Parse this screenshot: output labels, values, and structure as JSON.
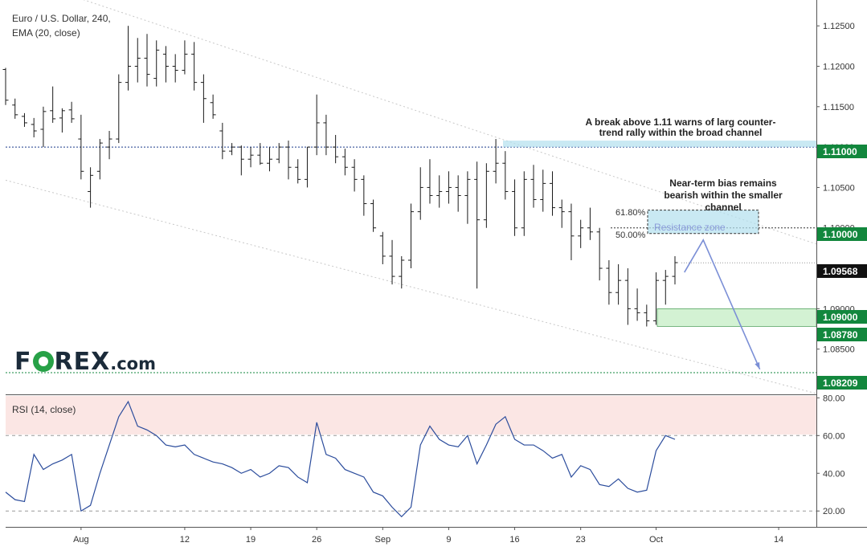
{
  "header": {
    "symbol_line": "Euro / U.S. Dollar, 240,",
    "ema_line": "EMA (20, close)",
    "rsi_label": "RSI (14, close)"
  },
  "logo": {
    "part1": "F",
    "part2": "REX",
    "suffix": ".com"
  },
  "annotations": {
    "break_note_1": "A break above 1.11 warns of larg counter-",
    "break_note_2": "trend rally within the broad channel",
    "bias_note_1": "Near-term bias remains",
    "bias_note_2": "bearish within the smaller",
    "bias_note_3": "channel",
    "fib_618": "61.80%",
    "fib_50": "50.00%",
    "resistance_zone": "Resistance zone"
  },
  "colors": {
    "candle": "#1a1a1a",
    "rsi_line": "#2b4c9c",
    "resistance_fill": "#b2e0ee",
    "support_fill": "#c8efc8",
    "projection_arrow": "#7b8fd6",
    "price_badge_green": "#12873d",
    "last_price_badge": "#111111"
  },
  "chart_data": [
    {
      "type": "candlestick",
      "title": "Euro / U.S. Dollar, 240,",
      "indicator": "EMA (20, close)",
      "y_axis": {
        "ticks": [
          "1.12500",
          "1.12000",
          "1.11500",
          "1.11000",
          "1.10500",
          "1.10000",
          "1.09500",
          "1.09000",
          "1.08500"
        ],
        "range": [
          1.0795,
          1.128
        ]
      },
      "x_axis": {
        "tick_labels": [
          "Aug",
          "12",
          "19",
          "26",
          "Sep",
          "9",
          "16",
          "23",
          "Oct",
          "14"
        ],
        "range": [
          "2019-07-24",
          "2019-10-18"
        ]
      },
      "price_labels": {
        "level_1110": "1.11000",
        "level_1100": "1.10000",
        "last_price": "1.09568",
        "level_1090": "1.09000",
        "level_10878": "1.08780",
        "level_10821": "1.08209"
      },
      "last_price": 1.09568,
      "horizontal_levels": [
        1.11,
        1.1,
        1.08209
      ],
      "zones": {
        "resistance": {
          "label": "Resistance zone",
          "from": 1.0993,
          "to": 1.1022
        },
        "upper_band": {
          "from": 1.11,
          "to": 1.1108
        },
        "support": {
          "from": 1.0878,
          "to": 1.09
        }
      },
      "fibonacci": [
        {
          "label": "61.80%",
          "value": 1.102
        },
        {
          "label": "50.00%",
          "value": 1.1
        }
      ],
      "channel_lines": [
        {
          "from": [
            "2019-07-29",
            1.1295
          ],
          "to": [
            "2019-10-18",
            1.098
          ]
        },
        {
          "from": [
            "2019-07-24",
            1.1059
          ],
          "to": [
            "2019-10-18",
            1.0795
          ]
        }
      ],
      "projection": [
        {
          "date": "2019-10-04",
          "price": 1.0945
        },
        {
          "date": "2019-10-06",
          "price": 1.0985
        },
        {
          "date": "2019-10-12",
          "price": 1.0825
        }
      ],
      "candles": [
        [
          "2019-07-24",
          1.1196,
          1.1198,
          1.1152,
          1.1158
        ],
        [
          "2019-07-25",
          1.1152,
          1.116,
          1.1135,
          1.114
        ],
        [
          "2019-07-26",
          1.1138,
          1.1142,
          1.1125,
          1.113
        ],
        [
          "2019-07-27",
          1.1128,
          1.1136,
          1.1112,
          1.112
        ],
        [
          "2019-07-28",
          1.1122,
          1.115,
          1.11,
          1.1144
        ],
        [
          "2019-07-29",
          1.1145,
          1.1175,
          1.113,
          1.1135
        ],
        [
          "2019-07-30",
          1.1136,
          1.1148,
          1.1118,
          1.1145
        ],
        [
          "2019-07-31",
          1.1146,
          1.1156,
          1.113,
          1.1135
        ],
        [
          "2019-08-01",
          1.111,
          1.114,
          1.106,
          1.107
        ],
        [
          "2019-08-02",
          1.1045,
          1.1075,
          1.1025,
          1.1065
        ],
        [
          "2019-08-03",
          1.107,
          1.111,
          1.106,
          1.1105
        ],
        [
          "2019-08-04",
          1.11,
          1.112,
          1.1085,
          1.111
        ],
        [
          "2019-08-05",
          1.111,
          1.119,
          1.1105,
          1.118
        ],
        [
          "2019-08-06",
          1.118,
          1.125,
          1.117,
          1.12
        ],
        [
          "2019-08-07",
          1.12,
          1.1235,
          1.118,
          1.121
        ],
        [
          "2019-08-08",
          1.121,
          1.124,
          1.1175,
          1.119
        ],
        [
          "2019-08-09",
          1.1185,
          1.1232,
          1.1175,
          1.122
        ],
        [
          "2019-08-10",
          1.1215,
          1.1225,
          1.118,
          1.12
        ],
        [
          "2019-08-11",
          1.12,
          1.1215,
          1.118,
          1.1195
        ],
        [
          "2019-08-12",
          1.1195,
          1.1232,
          1.119,
          1.1215
        ],
        [
          "2019-08-13",
          1.1215,
          1.123,
          1.117,
          1.118
        ],
        [
          "2019-08-14",
          1.118,
          1.119,
          1.113,
          1.116
        ],
        [
          "2019-08-15",
          1.1155,
          1.1165,
          1.1135,
          1.114
        ],
        [
          "2019-08-16",
          1.112,
          1.113,
          1.1085,
          1.1095
        ],
        [
          "2019-08-17",
          1.1095,
          1.1105,
          1.109,
          1.11
        ],
        [
          "2019-08-18",
          1.11,
          1.1102,
          1.1065,
          1.1085
        ],
        [
          "2019-08-19",
          1.1085,
          1.11,
          1.1075,
          1.109
        ],
        [
          "2019-08-20",
          1.109,
          1.1105,
          1.1078,
          1.108
        ],
        [
          "2019-08-21",
          1.108,
          1.11,
          1.107,
          1.1085
        ],
        [
          "2019-08-22",
          1.1085,
          1.1105,
          1.108,
          1.11
        ],
        [
          "2019-08-23",
          1.11,
          1.1108,
          1.106,
          1.1075
        ],
        [
          "2019-08-24",
          1.1075,
          1.1085,
          1.1055,
          1.106
        ],
        [
          "2019-08-25",
          1.106,
          1.11,
          1.105,
          1.11
        ],
        [
          "2019-08-26",
          1.11,
          1.1165,
          1.109,
          1.113
        ],
        [
          "2019-08-27",
          1.113,
          1.114,
          1.109,
          1.11
        ],
        [
          "2019-08-28",
          1.11,
          1.1115,
          1.108,
          1.1088
        ],
        [
          "2019-08-29",
          1.1088,
          1.1098,
          1.1065,
          1.1075
        ],
        [
          "2019-08-30",
          1.1075,
          1.1085,
          1.1045,
          1.106
        ],
        [
          "2019-08-31",
          1.106,
          1.1065,
          1.1015,
          1.103
        ],
        [
          "2019-09-01",
          1.103,
          1.1035,
          1.0995,
          1.1
        ],
        [
          "2019-09-02",
          1.099,
          1.0995,
          1.0955,
          1.0965
        ],
        [
          "2019-09-03",
          1.0965,
          1.0985,
          1.093,
          1.094
        ],
        [
          "2019-09-04",
          1.094,
          1.0965,
          1.0925,
          1.096
        ],
        [
          "2019-09-05",
          1.096,
          1.103,
          1.095,
          1.102
        ],
        [
          "2019-09-06",
          1.102,
          1.1075,
          1.101,
          1.105
        ],
        [
          "2019-09-07",
          1.105,
          1.1085,
          1.103,
          1.104
        ],
        [
          "2019-09-08",
          1.104,
          1.1065,
          1.1025,
          1.1045
        ],
        [
          "2019-09-09",
          1.1045,
          1.107,
          1.103,
          1.105
        ],
        [
          "2019-09-10",
          1.105,
          1.1065,
          1.102,
          1.104
        ],
        [
          "2019-09-11",
          1.104,
          1.107,
          1.1005,
          1.106
        ],
        [
          "2019-09-12",
          1.106,
          1.1082,
          1.0925,
          1.101
        ],
        [
          "2019-09-13",
          1.101,
          1.108,
          1.1,
          1.107
        ],
        [
          "2019-09-14",
          1.107,
          1.111,
          1.1055,
          1.108
        ],
        [
          "2019-09-15",
          1.108,
          1.1095,
          1.1035,
          1.1045
        ],
        [
          "2019-09-16",
          1.1045,
          1.106,
          1.099,
          1.1
        ],
        [
          "2019-09-17",
          1.1,
          1.107,
          1.099,
          1.106
        ],
        [
          "2019-09-18",
          1.106,
          1.1078,
          1.1025,
          1.1035
        ],
        [
          "2019-09-19",
          1.1035,
          1.1072,
          1.102,
          1.1055
        ],
        [
          "2019-09-20",
          1.1055,
          1.107,
          1.1015,
          1.1025
        ],
        [
          "2019-09-21",
          1.1025,
          1.1035,
          1.1,
          1.102
        ],
        [
          "2019-09-22",
          1.102,
          1.103,
          1.096,
          1.099
        ],
        [
          "2019-09-23",
          1.099,
          1.101,
          1.0975,
          1.1
        ],
        [
          "2019-09-24",
          1.1,
          1.1025,
          1.0985,
          1.0995
        ],
        [
          "2019-09-25",
          1.0995,
          1.1,
          1.0935,
          1.095
        ],
        [
          "2019-09-26",
          1.095,
          1.096,
          1.0905,
          1.092
        ],
        [
          "2019-09-27",
          1.092,
          1.0955,
          1.0905,
          1.0935
        ],
        [
          "2019-09-28",
          1.0935,
          1.095,
          1.088,
          1.09
        ],
        [
          "2019-09-29",
          1.09,
          1.0925,
          1.0885,
          1.0895
        ],
        [
          "2019-09-30",
          1.0895,
          1.0905,
          1.0878,
          1.0885
        ],
        [
          "2019-10-01",
          1.0885,
          1.0945,
          1.088,
          1.0935
        ],
        [
          "2019-10-02",
          1.0935,
          1.0948,
          1.0905,
          1.094
        ],
        [
          "2019-10-03",
          1.094,
          1.0965,
          1.093,
          1.0957
        ]
      ]
    },
    {
      "type": "line",
      "title": "RSI (14, close)",
      "y_axis": {
        "ticks": [
          "80.00",
          "60.00",
          "40.00",
          "20.00"
        ],
        "range": [
          12,
          81
        ]
      },
      "overbought": 60,
      "oversold": 20,
      "x": [
        "2019-07-24",
        "2019-07-25",
        "2019-07-26",
        "2019-07-27",
        "2019-07-28",
        "2019-07-29",
        "2019-07-30",
        "2019-07-31",
        "2019-08-01",
        "2019-08-02",
        "2019-08-03",
        "2019-08-04",
        "2019-08-05",
        "2019-08-06",
        "2019-08-07",
        "2019-08-08",
        "2019-08-09",
        "2019-08-10",
        "2019-08-11",
        "2019-08-12",
        "2019-08-13",
        "2019-08-14",
        "2019-08-15",
        "2019-08-16",
        "2019-08-17",
        "2019-08-18",
        "2019-08-19",
        "2019-08-20",
        "2019-08-21",
        "2019-08-22",
        "2019-08-23",
        "2019-08-24",
        "2019-08-25",
        "2019-08-26",
        "2019-08-27",
        "2019-08-28",
        "2019-08-29",
        "2019-08-30",
        "2019-08-31",
        "2019-09-01",
        "2019-09-02",
        "2019-09-03",
        "2019-09-04",
        "2019-09-05",
        "2019-09-06",
        "2019-09-07",
        "2019-09-08",
        "2019-09-09",
        "2019-09-10",
        "2019-09-11",
        "2019-09-12",
        "2019-09-13",
        "2019-09-14",
        "2019-09-15",
        "2019-09-16",
        "2019-09-17",
        "2019-09-18",
        "2019-09-19",
        "2019-09-20",
        "2019-09-21",
        "2019-09-22",
        "2019-09-23",
        "2019-09-24",
        "2019-09-25",
        "2019-09-26",
        "2019-09-27",
        "2019-09-28",
        "2019-09-29",
        "2019-09-30",
        "2019-10-01",
        "2019-10-02",
        "2019-10-03"
      ],
      "values": [
        30,
        26,
        25,
        50,
        42,
        45,
        47,
        50,
        20,
        23,
        40,
        55,
        70,
        78,
        65,
        63,
        60,
        55,
        54,
        55,
        50,
        48,
        46,
        45,
        43,
        40,
        42,
        38,
        40,
        44,
        43,
        38,
        35,
        67,
        50,
        48,
        42,
        40,
        38,
        30,
        28,
        22,
        17,
        22,
        55,
        65,
        58,
        55,
        54,
        60,
        45,
        55,
        66,
        70,
        58,
        55,
        55,
        52,
        48,
        50,
        38,
        44,
        42,
        34,
        33,
        37,
        32,
        30,
        31,
        52,
        60,
        58
      ]
    }
  ]
}
